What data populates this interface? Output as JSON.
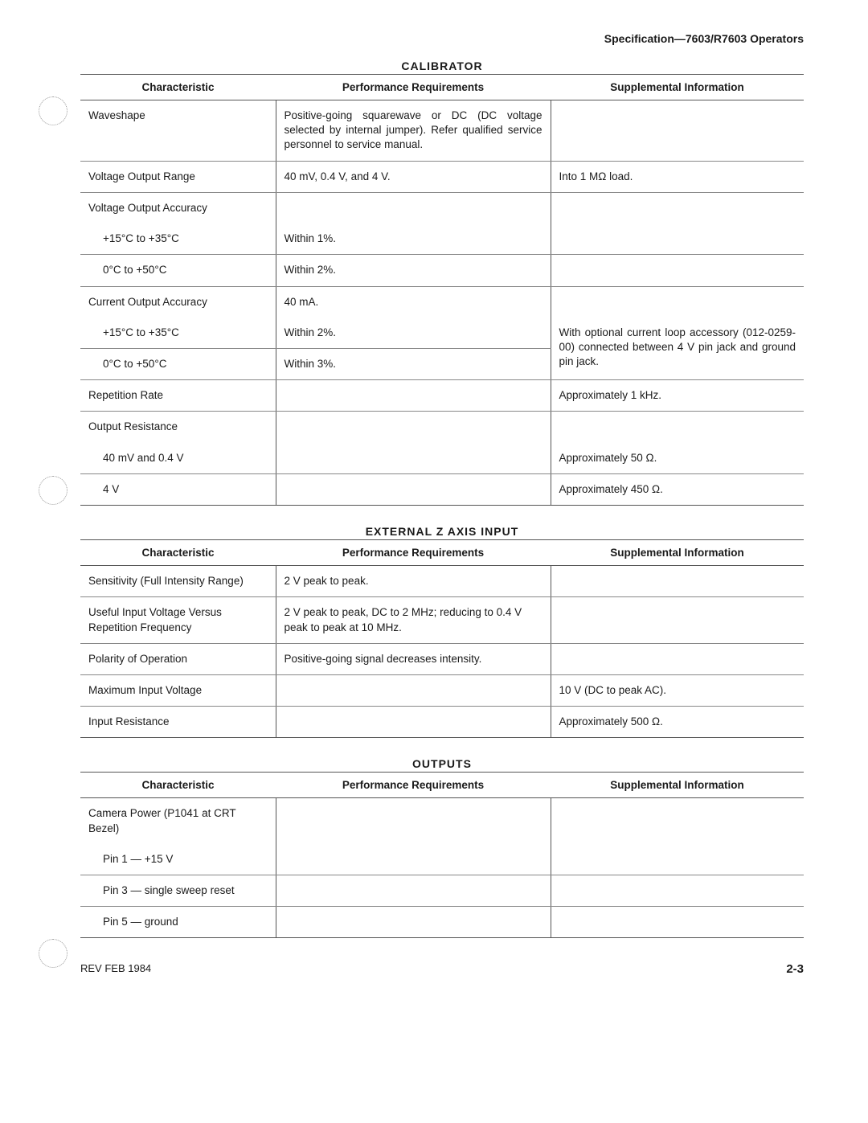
{
  "header": "Specification—7603/R7603 Operators",
  "footer": {
    "rev": "REV FEB 1984",
    "page": "2-3"
  },
  "tables": [
    {
      "title": "CALIBRATOR",
      "headers": [
        "Characteristic",
        "Performance Requirements",
        "Supplemental Information"
      ],
      "rows": [
        {
          "c1": "Waveshape",
          "c2": "Positive-going squarewave or DC (DC voltage selected by internal jumper). Refer qualified service personnel to service manual.",
          "c3": "",
          "indent": false,
          "justify2": true
        },
        {
          "c1": "Voltage Output Range",
          "c2": "40 mV, 0.4 V, and 4 V.",
          "c3": "Into 1 MΩ load.",
          "indent": false
        },
        {
          "c1": "Voltage Output Accuracy",
          "c2": "",
          "c3": "",
          "indent": false,
          "nobb": true
        },
        {
          "c1": "+15°C to +35°C",
          "c2": "Within 1%.",
          "c3": "",
          "indent": true
        },
        {
          "c1": "0°C to +50°C",
          "c2": "Within 2%.",
          "c3": "",
          "indent": true
        },
        {
          "c1": "Current Output Accuracy",
          "c2": "40 mA.",
          "c3": "",
          "indent": false,
          "nobb": true
        },
        {
          "c1": "+15°C to +35°C",
          "c2": "Within 2%.",
          "c3": "With optional current loop accessory (012-0259-00) connected between 4 V pin jack and ground pin jack.",
          "indent": true,
          "rowspan3": 2,
          "justify3": true
        },
        {
          "c1": "0°C to +50°C",
          "c2": "Within 3%.",
          "c3": null,
          "indent": true
        },
        {
          "c1": "Repetition Rate",
          "c2": "",
          "c3": "Approximately 1 kHz.",
          "indent": false
        },
        {
          "c1": "Output Resistance",
          "c2": "",
          "c3": "",
          "indent": false,
          "nobb": true
        },
        {
          "c1": "40 mV and 0.4 V",
          "c2": "",
          "c3": "Approximately 50 Ω.",
          "indent": true
        },
        {
          "c1": "4 V",
          "c2": "",
          "c3": "Approximately 450 Ω.",
          "indent": true,
          "last": true
        }
      ]
    },
    {
      "title": "EXTERNAL Z AXIS INPUT",
      "headers": [
        "Characteristic",
        "Performance Requirements",
        "Supplemental Information"
      ],
      "rows": [
        {
          "c1": "Sensitivity (Full Intensity Range)",
          "c2": "2 V peak to peak.",
          "c3": "",
          "indent": false
        },
        {
          "c1": "Useful Input Voltage Versus Repetition Frequency",
          "c2": "2 V peak to peak, DC to 2 MHz; reducing to 0.4 V peak to peak at 10 MHz.",
          "c3": "",
          "indent": false
        },
        {
          "c1": "Polarity of Operation",
          "c2": "Positive-going signal decreases intensity.",
          "c3": "",
          "indent": false
        },
        {
          "c1": "Maximum Input Voltage",
          "c2": "",
          "c3": "10 V (DC to peak AC).",
          "indent": false
        },
        {
          "c1": "Input Resistance",
          "c2": "",
          "c3": "Approximately 500 Ω.",
          "indent": false,
          "last": true
        }
      ]
    },
    {
      "title": "OUTPUTS",
      "headers": [
        "Characteristic",
        "Performance Requirements",
        "Supplemental Information"
      ],
      "rows": [
        {
          "c1": "Camera Power (P1041 at CRT Bezel)",
          "c2": "",
          "c3": "",
          "indent": false,
          "nobb": true
        },
        {
          "c1": "Pin 1 — +15 V",
          "c2": "",
          "c3": "",
          "indent": true
        },
        {
          "c1": "Pin 3 — single sweep reset",
          "c2": "",
          "c3": "",
          "indent": true
        },
        {
          "c1": "Pin 5 — ground",
          "c2": "",
          "c3": "",
          "indent": true,
          "last": true
        }
      ]
    }
  ]
}
